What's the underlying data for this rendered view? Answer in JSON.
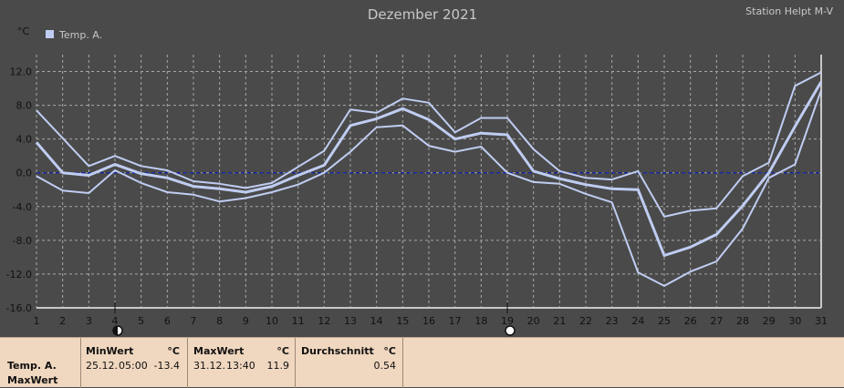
{
  "chart_data": {
    "type": "line",
    "title": "Dezember 2021",
    "station": "Station Helpt M-V",
    "ylabel": "°C",
    "legend": "Temp. A.",
    "x": [
      1,
      2,
      3,
      4,
      5,
      6,
      7,
      8,
      9,
      10,
      11,
      12,
      13,
      14,
      15,
      16,
      17,
      18,
      19,
      20,
      21,
      22,
      23,
      24,
      25,
      26,
      27,
      28,
      29,
      30,
      31
    ],
    "ylim": [
      -16,
      14
    ],
    "yticks": [
      -16,
      -12,
      -8,
      -4,
      0,
      4,
      8,
      12
    ],
    "ytick_labels": [
      "-16.0",
      "-12.0",
      "-8.0",
      "-4.0",
      "0.0",
      "4.0",
      "8.0",
      "12.0"
    ],
    "grid": true,
    "series": [
      {
        "role": "max",
        "values": [
          7.4,
          4.1,
          0.8,
          2.0,
          0.8,
          0.3,
          -1.0,
          -1.3,
          -1.8,
          -1.2,
          0.7,
          2.6,
          7.5,
          7.1,
          8.8,
          8.3,
          4.8,
          6.5,
          6.5,
          2.8,
          0.2,
          -0.6,
          -0.8,
          0.2,
          -5.2,
          -4.5,
          -4.2,
          -0.4,
          1.2,
          10.3,
          11.9
        ]
      },
      {
        "role": "avg",
        "values": [
          3.6,
          0.0,
          -0.3,
          1.0,
          -0.1,
          -0.6,
          -1.6,
          -1.9,
          -2.3,
          -1.6,
          -0.3,
          0.9,
          5.6,
          6.4,
          7.6,
          6.3,
          4.0,
          4.7,
          4.5,
          0.2,
          -0.7,
          -1.4,
          -1.9,
          -2.0,
          -9.8,
          -8.8,
          -7.3,
          -3.9,
          0.0,
          5.5,
          10.8
        ]
      },
      {
        "role": "min",
        "values": [
          -0.4,
          -2.1,
          -2.4,
          0.3,
          -1.2,
          -2.3,
          -2.6,
          -3.4,
          -3.0,
          -2.3,
          -1.4,
          0.0,
          2.5,
          5.4,
          5.6,
          3.2,
          2.5,
          3.1,
          0.0,
          -1.1,
          -1.3,
          -2.5,
          -3.5,
          -11.8,
          -13.4,
          -11.7,
          -10.5,
          -6.6,
          -0.6,
          1.0,
          9.8
        ]
      }
    ],
    "markers": {
      "down_day": 4,
      "up_day": 19
    },
    "colors": {
      "line": "#c0cdf2",
      "zero_line": "#0a1eb0",
      "plot_bg": "#4a4a4a",
      "axis": "#c8c8c8",
      "text": "#111111",
      "panel_bg": "#f0d7bf"
    }
  },
  "stats": {
    "row_label_1": "Temp. A.",
    "row_label_2": "MaxWert",
    "min_title": "MinWert",
    "min_unit": "°C",
    "min_date": "25.12.",
    "min_time": "05:00",
    "min_value": "-13.4",
    "max_title": "MaxWert",
    "max_unit": "°C",
    "max_date": "31.12.",
    "max_time": "13:40",
    "max_value": "11.9",
    "avg_title": "Durchschnitt",
    "avg_unit": "°C",
    "avg_value": "0.54"
  }
}
